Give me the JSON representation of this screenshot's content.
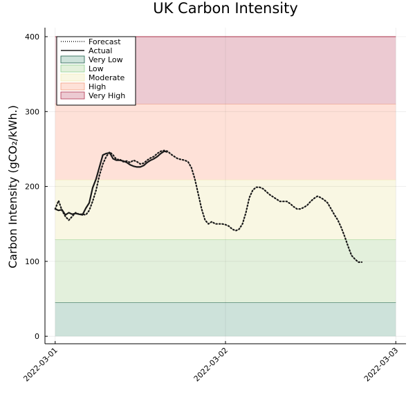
{
  "chart_data": {
    "type": "line",
    "title": "UK Carbon Intensity",
    "xlabel": "",
    "ylabel": "Carbon Intensity (gCO₂/kWh.)",
    "x_ticks": [
      "2022-03-01",
      "2022-03-02",
      "2022-03-03"
    ],
    "y_ticks": [
      0,
      100,
      200,
      300,
      400
    ],
    "ylim": [
      -10,
      412
    ],
    "xlim": [
      -0.06,
      2.06
    ],
    "grid": true,
    "legend_position": "top-left",
    "bands": [
      {
        "name": "Very Low",
        "from": 0,
        "to": 45,
        "fill": "#cde2da",
        "line": "#1b5e4a"
      },
      {
        "name": "Low",
        "from": 45,
        "to": 129,
        "fill": "#e3f0dc",
        "line": "#8fd08f"
      },
      {
        "name": "Moderate",
        "from": 129,
        "to": 209,
        "fill": "#f9f7e3",
        "line": "#f3edb8"
      },
      {
        "name": "High",
        "from": 209,
        "to": 310,
        "fill": "#fee1d8",
        "line": "#f3a081"
      },
      {
        "name": "Very High",
        "from": 310,
        "to": 400,
        "fill": "#eccad2",
        "line": "#b3334f"
      }
    ],
    "series": [
      {
        "name": "Forecast",
        "style": "dotted",
        "color": "#1a1a1a",
        "points": [
          [
            0.0,
            170
          ],
          [
            0.02,
            181
          ],
          [
            0.04,
            168
          ],
          [
            0.06,
            160
          ],
          [
            0.08,
            155
          ],
          [
            0.1,
            160
          ],
          [
            0.12,
            165
          ],
          [
            0.14,
            163
          ],
          [
            0.16,
            163
          ],
          [
            0.18,
            162
          ],
          [
            0.2,
            168
          ],
          [
            0.22,
            180
          ],
          [
            0.24,
            195
          ],
          [
            0.26,
            215
          ],
          [
            0.28,
            230
          ],
          [
            0.3,
            240
          ],
          [
            0.32,
            246
          ],
          [
            0.34,
            242
          ],
          [
            0.36,
            236
          ],
          [
            0.38,
            236
          ],
          [
            0.4,
            233
          ],
          [
            0.42,
            234
          ],
          [
            0.44,
            232
          ],
          [
            0.46,
            235
          ],
          [
            0.48,
            233
          ],
          [
            0.5,
            230
          ],
          [
            0.52,
            231
          ],
          [
            0.54,
            235
          ],
          [
            0.56,
            238
          ],
          [
            0.58,
            240
          ],
          [
            0.6,
            244
          ],
          [
            0.62,
            247
          ],
          [
            0.64,
            248
          ],
          [
            0.66,
            247
          ],
          [
            0.68,
            243
          ],
          [
            0.7,
            240
          ],
          [
            0.72,
            237
          ],
          [
            0.74,
            236
          ],
          [
            0.76,
            235
          ],
          [
            0.78,
            233
          ],
          [
            0.8,
            225
          ],
          [
            0.82,
            210
          ],
          [
            0.84,
            190
          ],
          [
            0.86,
            170
          ],
          [
            0.88,
            155
          ],
          [
            0.9,
            150
          ],
          [
            0.92,
            153
          ],
          [
            0.94,
            150
          ],
          [
            0.96,
            150
          ],
          [
            0.98,
            150
          ],
          [
            1.0,
            149
          ],
          [
            1.02,
            147
          ],
          [
            1.04,
            143
          ],
          [
            1.06,
            141
          ],
          [
            1.08,
            143
          ],
          [
            1.1,
            150
          ],
          [
            1.12,
            165
          ],
          [
            1.14,
            185
          ],
          [
            1.16,
            195
          ],
          [
            1.18,
            199
          ],
          [
            1.2,
            199
          ],
          [
            1.22,
            197
          ],
          [
            1.24,
            193
          ],
          [
            1.26,
            189
          ],
          [
            1.28,
            186
          ],
          [
            1.3,
            183
          ],
          [
            1.32,
            180
          ],
          [
            1.34,
            180
          ],
          [
            1.36,
            180
          ],
          [
            1.38,
            177
          ],
          [
            1.4,
            173
          ],
          [
            1.42,
            170
          ],
          [
            1.44,
            170
          ],
          [
            1.46,
            172
          ],
          [
            1.48,
            175
          ],
          [
            1.5,
            180
          ],
          [
            1.52,
            184
          ],
          [
            1.54,
            187
          ],
          [
            1.56,
            185
          ],
          [
            1.58,
            182
          ],
          [
            1.6,
            178
          ],
          [
            1.62,
            170
          ],
          [
            1.64,
            162
          ],
          [
            1.66,
            155
          ],
          [
            1.68,
            145
          ],
          [
            1.7,
            133
          ],
          [
            1.72,
            120
          ],
          [
            1.74,
            108
          ],
          [
            1.76,
            103
          ],
          [
            1.78,
            99
          ],
          [
            1.8,
            99
          ]
        ]
      },
      {
        "name": "Actual",
        "style": "solid",
        "color": "#1a1a1a",
        "points": [
          [
            0.0,
            170
          ],
          [
            0.02,
            168
          ],
          [
            0.04,
            169
          ],
          [
            0.06,
            162
          ],
          [
            0.08,
            165
          ],
          [
            0.1,
            163
          ],
          [
            0.12,
            164
          ],
          [
            0.14,
            163
          ],
          [
            0.16,
            162
          ],
          [
            0.18,
            171
          ],
          [
            0.2,
            178
          ],
          [
            0.22,
            198
          ],
          [
            0.24,
            210
          ],
          [
            0.26,
            226
          ],
          [
            0.28,
            242
          ],
          [
            0.3,
            244
          ],
          [
            0.32,
            245
          ],
          [
            0.34,
            237
          ],
          [
            0.36,
            235
          ],
          [
            0.38,
            235
          ],
          [
            0.4,
            234
          ],
          [
            0.42,
            232
          ],
          [
            0.44,
            229
          ],
          [
            0.46,
            227
          ],
          [
            0.48,
            226
          ],
          [
            0.5,
            226
          ],
          [
            0.52,
            228
          ],
          [
            0.54,
            232
          ],
          [
            0.56,
            235
          ],
          [
            0.58,
            237
          ],
          [
            0.6,
            240
          ],
          [
            0.62,
            244
          ],
          [
            0.64,
            247
          ],
          [
            0.66,
            246
          ]
        ]
      }
    ],
    "legend": [
      {
        "label": "Forecast",
        "kind": "line",
        "style": "dotted",
        "color": "#1a1a1a"
      },
      {
        "label": "Actual",
        "kind": "line",
        "style": "solid",
        "color": "#1a1a1a"
      },
      {
        "label": "Very Low",
        "kind": "band",
        "fill": "#cde2da",
        "line": "#1b5e4a"
      },
      {
        "label": "Low",
        "kind": "band",
        "fill": "#e3f0dc",
        "line": "#8fd08f"
      },
      {
        "label": "Moderate",
        "kind": "band",
        "fill": "#f9f7e3",
        "line": "#f3edb8"
      },
      {
        "label": "High",
        "kind": "band",
        "fill": "#fee1d8",
        "line": "#f3a081"
      },
      {
        "label": "Very High",
        "kind": "band",
        "fill": "#eccad2",
        "line": "#b3334f"
      }
    ]
  }
}
